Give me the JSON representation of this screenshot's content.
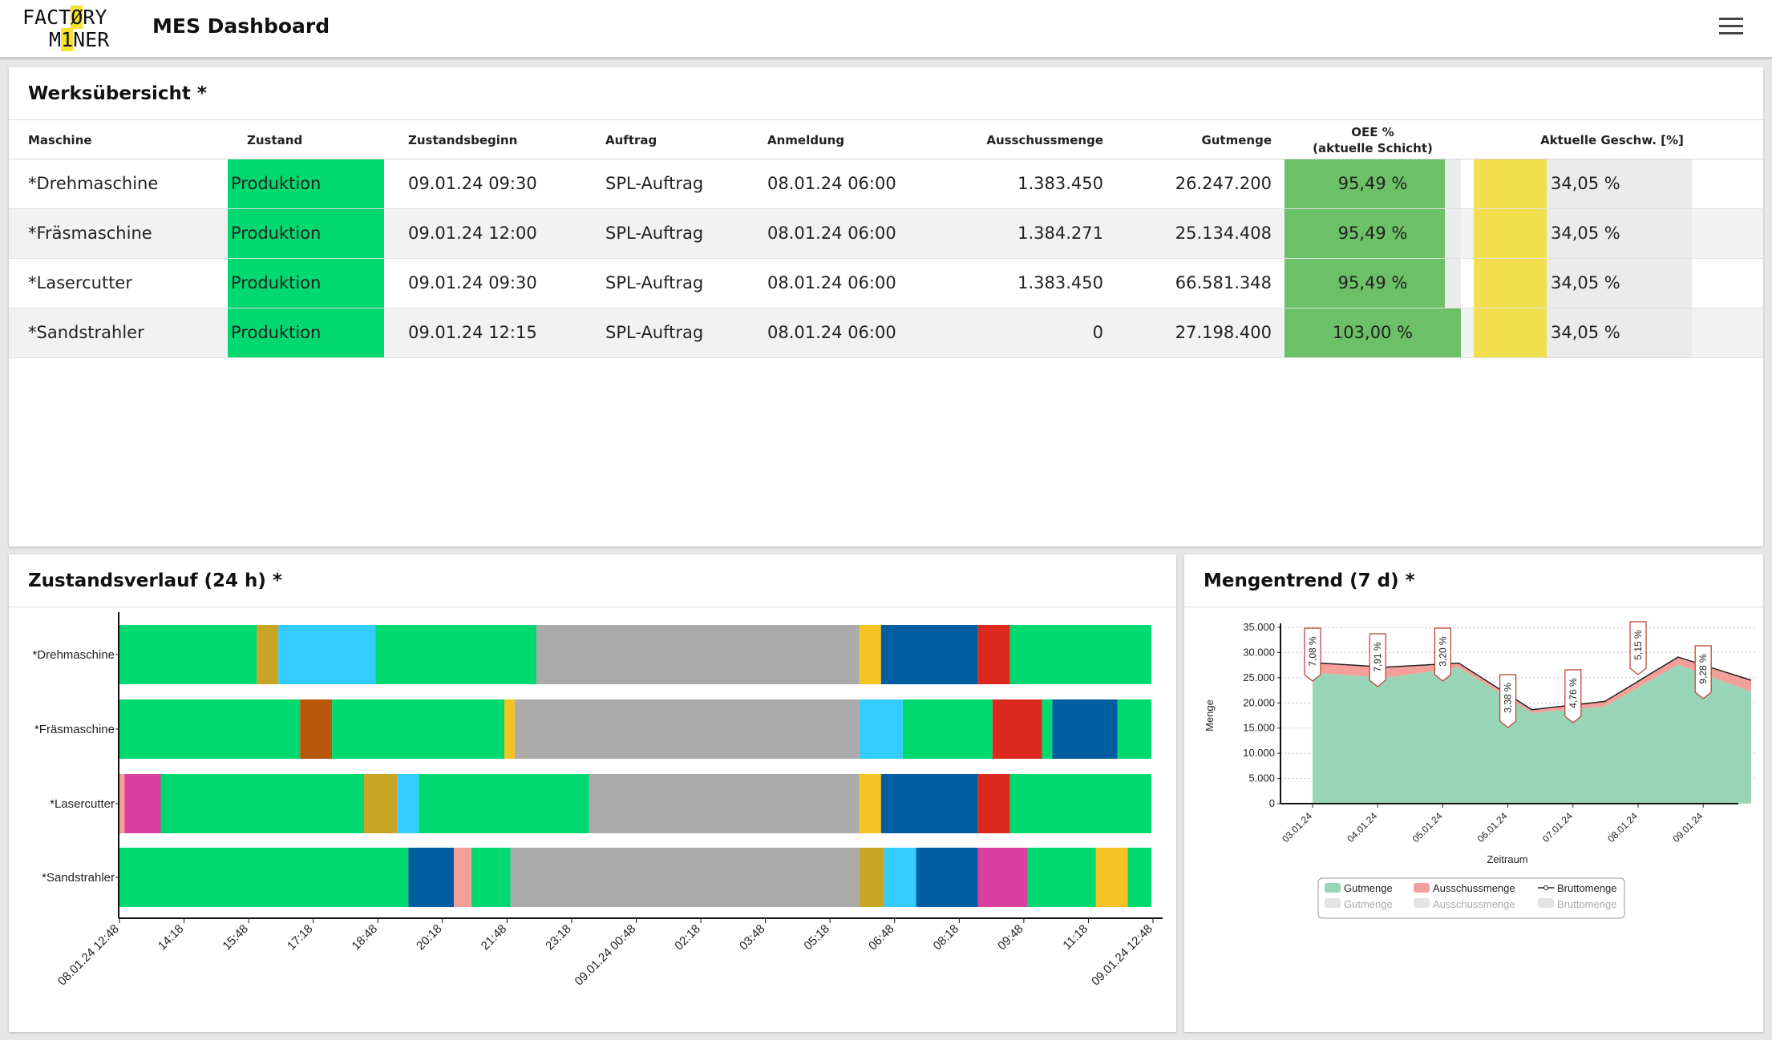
{
  "app": {
    "logo_line1_a": "FACT",
    "logo_line1_b": "Ø",
    "logo_line1_c": "RY",
    "logo_line2_a": "M",
    "logo_line2_b": "1",
    "logo_line2_c": "NER",
    "title": "MES Dashboard",
    "menu_icon": "hamburger-menu-icon"
  },
  "overview": {
    "title": "Werksübersicht *",
    "headers": {
      "machine": "Maschine",
      "state": "Zustand",
      "state_start": "Zustandsbeginn",
      "order": "Auftrag",
      "login": "Anmeldung",
      "scrap": "Ausschussmenge",
      "good": "Gutmenge",
      "oee_line1": "OEE %",
      "oee_line2": "(aktuelle Schicht)",
      "speed": "Aktuelle Geschw. [%]"
    },
    "rows": [
      {
        "machine": "*Drehmaschine",
        "state": "Produktion",
        "state_start": "09.01.24 09:30",
        "order": "SPL-Auftrag",
        "login": "08.01.24 06:00",
        "scrap": "1.383.450",
        "good": "26.247.200",
        "oee": "95,49 %",
        "oee_value": 95.49,
        "speed": "34,05 %",
        "speed_value": 34.05
      },
      {
        "machine": "*Fräsmaschine",
        "state": "Produktion",
        "state_start": "09.01.24 12:00",
        "order": "SPL-Auftrag",
        "login": "08.01.24 06:00",
        "scrap": "1.384.271",
        "good": "25.134.408",
        "oee": "95,49 %",
        "oee_value": 95.49,
        "speed": "34,05 %",
        "speed_value": 34.05
      },
      {
        "machine": "*Lasercutter",
        "state": "Produktion",
        "state_start": "09.01.24 09:30",
        "order": "SPL-Auftrag",
        "login": "08.01.24 06:00",
        "scrap": "1.383.450",
        "good": "66.581.348",
        "oee": "95,49 %",
        "oee_value": 95.49,
        "speed": "34,05 %",
        "speed_value": 34.05
      },
      {
        "machine": "*Sandstrahler",
        "state": "Produktion",
        "state_start": "09.01.24 12:15",
        "order": "SPL-Auftrag",
        "login": "08.01.24 06:00",
        "scrap": "0",
        "good": "27.198.400",
        "oee": "103,00 %",
        "oee_value": 103.0,
        "speed": "34,05 %",
        "speed_value": 34.05
      }
    ],
    "colors": {
      "production": "#00d970",
      "oee": "#6cc067",
      "speed": "#f1df4d",
      "bar_bg": "#ebebeb"
    }
  },
  "history": {
    "title": "Zustandsverlauf (24 h) *",
    "chart_data": {
      "type": "timeline",
      "rows": [
        {
          "name": "*Drehmaschine",
          "segments": [
            [
              0,
              0.133,
              "#00d970"
            ],
            [
              0.133,
              0.154,
              "#c9a526"
            ],
            [
              0.154,
              0.248,
              "#33ccff"
            ],
            [
              0.248,
              0.404,
              "#00d970"
            ],
            [
              0.404,
              0.717,
              "#aaaaaa"
            ],
            [
              0.717,
              0.738,
              "#f4c223"
            ],
            [
              0.738,
              0.832,
              "#005da0"
            ],
            [
              0.832,
              0.863,
              "#dc291d"
            ],
            [
              0.863,
              1.0,
              "#00d970"
            ]
          ]
        },
        {
          "name": "*Fräsmaschine",
          "segments": [
            [
              0,
              0.175,
              "#00d970"
            ],
            [
              0.175,
              0.206,
              "#b8560a"
            ],
            [
              0.206,
              0.373,
              "#00d970"
            ],
            [
              0.373,
              0.383,
              "#f4c223"
            ],
            [
              0.383,
              0.717,
              "#aaaaaa"
            ],
            [
              0.717,
              0.759,
              "#33ccff"
            ],
            [
              0.759,
              0.846,
              "#00d970"
            ],
            [
              0.846,
              0.894,
              "#dc291d"
            ],
            [
              0.894,
              0.904,
              "#00d970"
            ],
            [
              0.904,
              0.967,
              "#005da0"
            ],
            [
              0.967,
              1.0,
              "#00d970"
            ]
          ]
        },
        {
          "name": "*Lasercutter",
          "segments": [
            [
              0,
              0.005,
              "#f4a09a"
            ],
            [
              0.005,
              0.04,
              "#d93f9f"
            ],
            [
              0.04,
              0.237,
              "#00d970"
            ],
            [
              0.237,
              0.269,
              "#c9a526"
            ],
            [
              0.269,
              0.29,
              "#33ccff"
            ],
            [
              0.29,
              0.455,
              "#00d970"
            ],
            [
              0.455,
              0.717,
              "#aaaaaa"
            ],
            [
              0.717,
              0.738,
              "#f4c223"
            ],
            [
              0.738,
              0.832,
              "#005da0"
            ],
            [
              0.832,
              0.863,
              "#dc291d"
            ],
            [
              0.863,
              1.0,
              "#00d970"
            ]
          ]
        },
        {
          "name": "*Sandstrahler",
          "segments": [
            [
              0,
              0.28,
              "#00d970"
            ],
            [
              0.28,
              0.324,
              "#005da0"
            ],
            [
              0.324,
              0.341,
              "#f4a09a"
            ],
            [
              0.341,
              0.379,
              "#00d970"
            ],
            [
              0.379,
              0.717,
              "#aaaaaa"
            ],
            [
              0.717,
              0.741,
              "#c9a526"
            ],
            [
              0.741,
              0.772,
              "#33ccff"
            ],
            [
              0.772,
              0.832,
              "#005da0"
            ],
            [
              0.832,
              0.88,
              "#d93f9f"
            ],
            [
              0.88,
              0.946,
              "#00d970"
            ],
            [
              0.946,
              0.977,
              "#f4c223"
            ],
            [
              0.977,
              1.0,
              "#00d970"
            ]
          ]
        }
      ],
      "ticks": [
        {
          "label": "08.01.24 12:48",
          "pos": 0.0
        },
        {
          "label": "14:18",
          "pos": 0.0625
        },
        {
          "label": "15:48",
          "pos": 0.125
        },
        {
          "label": "17:18",
          "pos": 0.1875
        },
        {
          "label": "18:48",
          "pos": 0.25
        },
        {
          "label": "20:18",
          "pos": 0.3125
        },
        {
          "label": "21:48",
          "pos": 0.375
        },
        {
          "label": "23:18",
          "pos": 0.4375
        },
        {
          "label": "09.01.24 00:48",
          "pos": 0.5
        },
        {
          "label": "02:18",
          "pos": 0.5625
        },
        {
          "label": "03:48",
          "pos": 0.625
        },
        {
          "label": "05:18",
          "pos": 0.6875
        },
        {
          "label": "06:48",
          "pos": 0.75
        },
        {
          "label": "08:18",
          "pos": 0.8125
        },
        {
          "label": "09:48",
          "pos": 0.875
        },
        {
          "label": "11:18",
          "pos": 0.9375
        },
        {
          "label": "09.01.24 12:48",
          "pos": 1.0
        }
      ]
    }
  },
  "trend": {
    "title": "Mengentrend (7 d) *",
    "chart_data": {
      "type": "area",
      "categories": [
        "03.01.24",
        "04.01.24",
        "05.01.24",
        "06.01.24",
        "07.01.24",
        "08.01.24",
        "09.01.24"
      ],
      "series": [
        {
          "name": "Gutmenge",
          "values": [
            26000,
            25000,
            27000,
            18000,
            19300,
            27600,
            22200
          ],
          "color": "#98d5b6"
        },
        {
          "name": "Ausschussmenge",
          "values": [
            2000,
            2100,
            900,
            650,
            1000,
            1500,
            2300
          ],
          "color": "#f4a09a"
        },
        {
          "name": "Bruttomenge",
          "values": [
            28000,
            27100,
            27900,
            18650,
            20300,
            29100,
            24500
          ],
          "color": "#222222"
        }
      ],
      "annotations": [
        "7,08 %",
        "7,91 %",
        "3,20 %",
        "3,38 %",
        "4,76 %",
        "5,15 %",
        "9,28 %"
      ],
      "ylim": [
        0,
        35000
      ],
      "yticks": [
        "0",
        "5.000",
        "10.000",
        "15.000",
        "20.000",
        "25.000",
        "30.000",
        "35.000"
      ],
      "ylabel": "Menge",
      "xlabel": "Zeitraum",
      "legend": {
        "placement": "bottom",
        "row1": [
          "Gutmenge",
          "Ausschussmenge",
          "Bruttomenge"
        ],
        "row2": [
          "Gutmenge",
          "Ausschussmenge",
          "Bruttomenge"
        ]
      }
    }
  }
}
